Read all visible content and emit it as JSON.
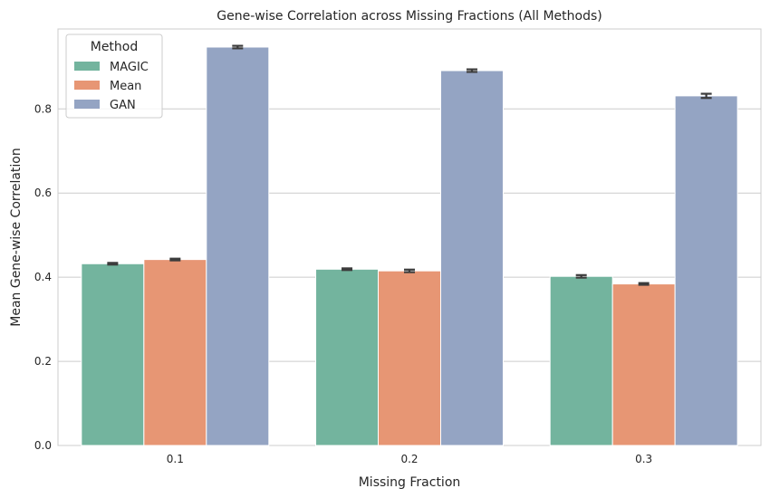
{
  "chart_data": {
    "type": "bar",
    "title": "Gene-wise Correlation across Missing Fractions (All Methods)",
    "xlabel": "Missing Fraction",
    "ylabel": "Mean Gene-wise Correlation",
    "categories": [
      "0.1",
      "0.2",
      "0.3"
    ],
    "ylim": [
      0,
      0.99
    ],
    "yticks": [
      "0.0",
      "0.2",
      "0.4",
      "0.6",
      "0.8"
    ],
    "grid": "horizontal",
    "legend": {
      "title": "Method",
      "placement": "top-left"
    },
    "series": [
      {
        "name": "MAGIC",
        "color": "#73b49e",
        "values": [
          0.432,
          0.419,
          0.402
        ],
        "errors": [
          0.002,
          0.002,
          0.003
        ]
      },
      {
        "name": "Mean",
        "color": "#e79674",
        "values": [
          0.442,
          0.415,
          0.384
        ],
        "errors": [
          0.002,
          0.003,
          0.002
        ]
      },
      {
        "name": "GAN",
        "color": "#94a4c3",
        "values": [
          0.947,
          0.891,
          0.831
        ],
        "errors": [
          0.003,
          0.003,
          0.005
        ]
      }
    ]
  }
}
